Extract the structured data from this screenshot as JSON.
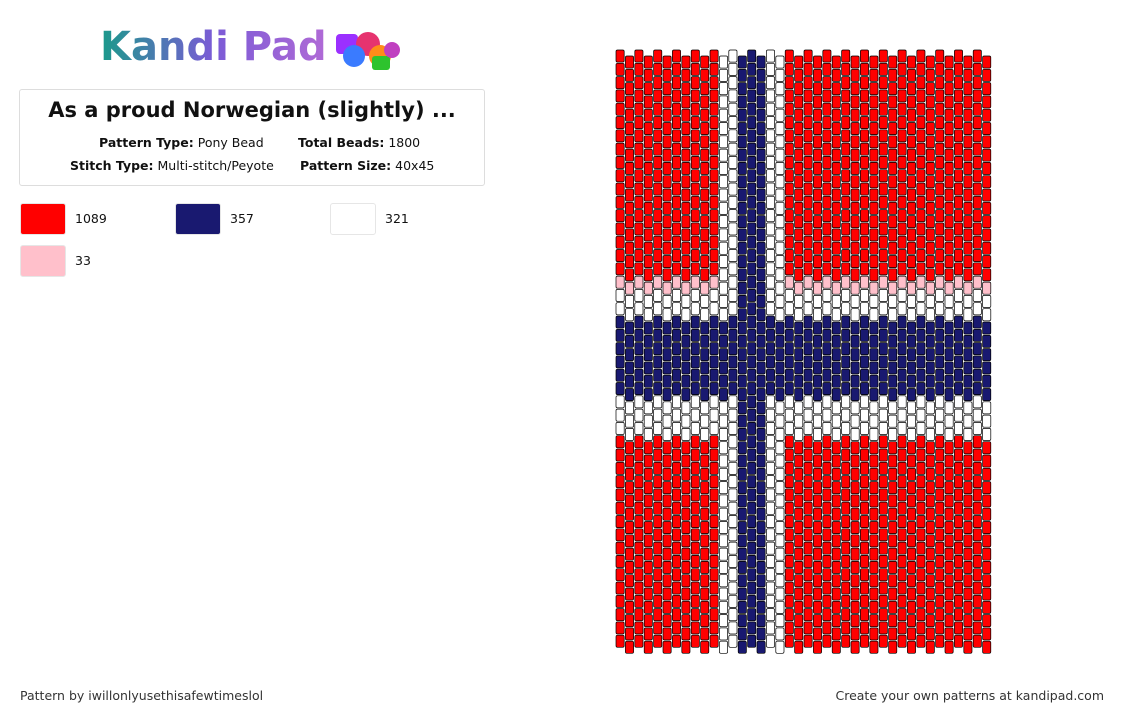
{
  "header": {
    "logo": "Kandi Pad",
    "title": "As a proud Norwegian (slightly) ...",
    "info": [
      {
        "label": "Pattern Type:",
        "value": "Pony Bead"
      },
      {
        "label": "Total Beads:",
        "value": "1800"
      },
      {
        "label": "Stitch Type:",
        "value": "Multi-stitch/Peyote"
      },
      {
        "label": "Pattern Size:",
        "value": "40x45"
      }
    ]
  },
  "palette": [
    {
      "color": "#ff0000",
      "count": 1089
    },
    {
      "color": "#191970",
      "count": 357
    },
    {
      "color": "#ffffff",
      "count": 321
    },
    {
      "color": "#ffc0cb",
      "count": 33
    }
  ],
  "footer": {
    "author": "Pattern by iwillonlyusethisafewtimeslol",
    "promo": "Create your own patterns at kandipad.com"
  }
}
